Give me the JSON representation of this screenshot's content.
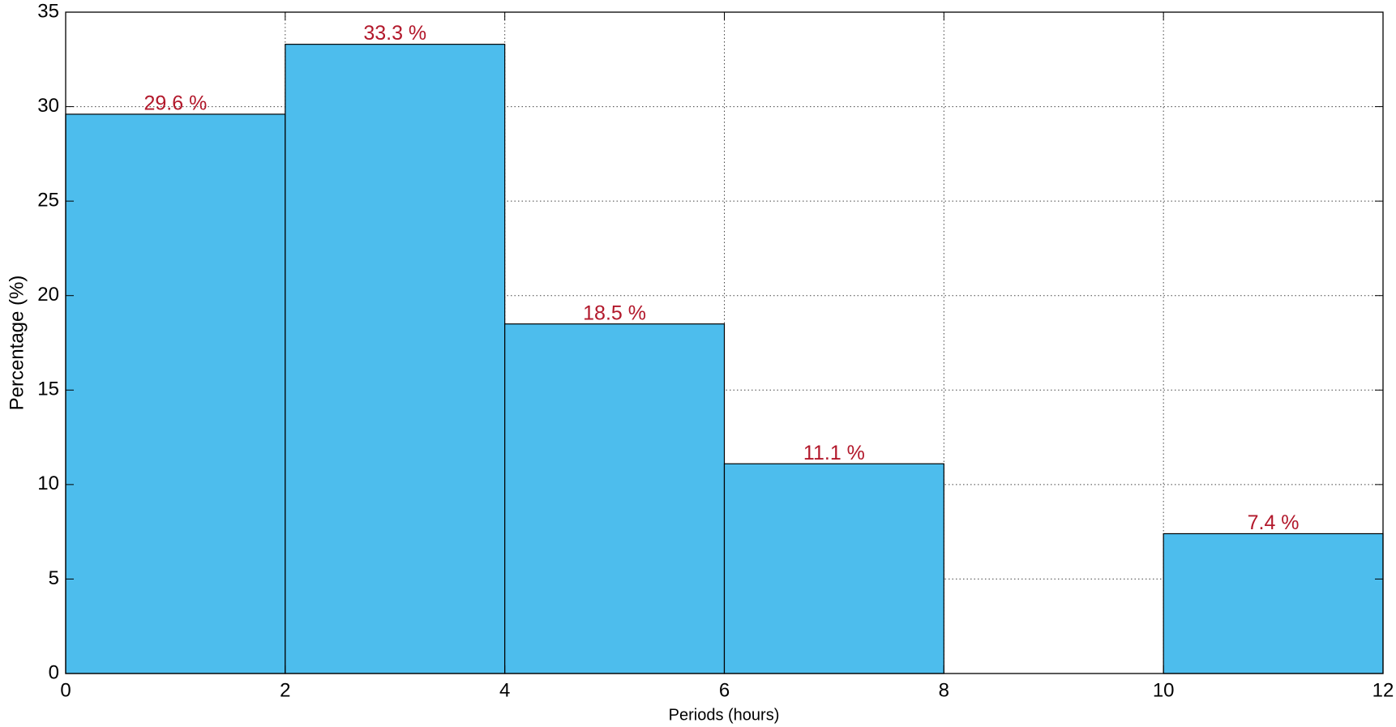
{
  "chart_data": {
    "type": "histogram",
    "xlabel": "Periods (hours)",
    "ylabel": "Percentage (%)",
    "bins": [
      0,
      2,
      4,
      6,
      8,
      10,
      12
    ],
    "values": [
      29.6,
      33.3,
      18.5,
      11.1,
      0,
      7.4
    ],
    "value_labels": [
      "29.6 %",
      "33.3 %",
      "18.5 %",
      "11.1 %",
      null,
      "7.4 %"
    ],
    "color": "#4dbded",
    "label_color": "#b2182b",
    "xlim": [
      0,
      12
    ],
    "xticks": [
      0,
      2,
      4,
      6,
      8,
      10,
      12
    ],
    "ylim": [
      0,
      35
    ],
    "yticks": [
      0,
      5,
      10,
      15,
      20,
      25,
      30,
      35
    ],
    "grid": true
  }
}
